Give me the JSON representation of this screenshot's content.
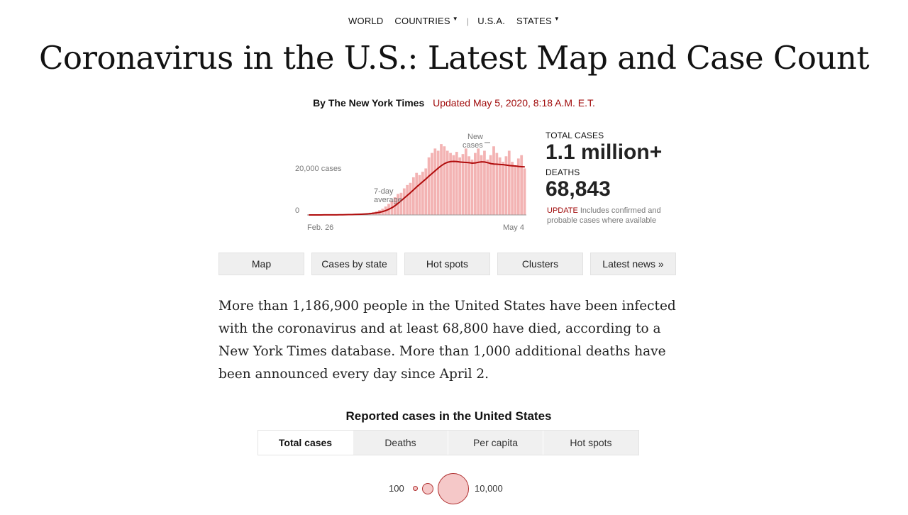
{
  "nav": {
    "items": [
      {
        "label": "WORLD",
        "caret": false
      },
      {
        "label": "COUNTRIES",
        "caret": true
      },
      {
        "label": "U.S.A.",
        "caret": false
      },
      {
        "label": "STATES",
        "caret": true
      }
    ],
    "separator": "|",
    "caret_glyph": "▼"
  },
  "header": {
    "title": "Coronavirus in the U.S.: Latest Map and Case Count",
    "byline": "By The New York Times",
    "updated": "Updated May 5, 2020, 8:18 A.M. E.T."
  },
  "chart_data": {
    "type": "bar",
    "series": [
      {
        "name": "New cases",
        "values": [
          10,
          15,
          20,
          25,
          30,
          40,
          50,
          60,
          80,
          100,
          130,
          160,
          200,
          250,
          300,
          380,
          450,
          550,
          650,
          800,
          1000,
          1300,
          1600,
          2200,
          2800,
          3800,
          5000,
          6500,
          8000,
          9500,
          10000,
          12000,
          13500,
          14500,
          17000,
          19000,
          18000,
          19500,
          21000,
          26000,
          28000,
          30000,
          29000,
          32000,
          31000,
          29000,
          28000,
          27000,
          28500,
          26000,
          27500,
          30000,
          26500,
          25000,
          28000,
          30000,
          27000,
          29000,
          25000,
          27000,
          31000,
          28000,
          26000,
          24000,
          26500,
          29000,
          24000,
          22000,
          25500,
          27000,
          21000
        ]
      },
      {
        "name": "7-day average",
        "values": [
          10,
          12,
          14,
          17,
          20,
          25,
          30,
          36,
          44,
          55,
          70,
          88,
          110,
          140,
          175,
          220,
          270,
          330,
          400,
          490,
          600,
          760,
          950,
          1200,
          1550,
          2000,
          2600,
          3300,
          4200,
          5300,
          6500,
          7700,
          8900,
          10100,
          11400,
          12700,
          13900,
          15100,
          16300,
          17600,
          18800,
          20000,
          21200,
          22300,
          23200,
          23800,
          24100,
          24200,
          24100,
          23900,
          23800,
          23700,
          23600,
          23400,
          23500,
          23800,
          24000,
          23900,
          23600,
          23200,
          23000,
          22900,
          22800,
          22700,
          22500,
          22300,
          22200,
          22100,
          21900,
          21800,
          21700
        ]
      }
    ],
    "x_start_label": "Feb. 26",
    "x_end_label": "May 4",
    "y_ticks": [
      0,
      20000
    ],
    "y_tick_labels": [
      "0",
      "20,000 cases"
    ],
    "annotations": {
      "new_cases": [
        "New",
        "cases"
      ],
      "avg": [
        "7-day",
        "average"
      ]
    },
    "ylim": [
      0,
      33000
    ],
    "colors": {
      "bar": "#f3b3b3",
      "line": "#b00c0c"
    }
  },
  "stats": {
    "total_label": "TOTAL CASES",
    "total_value": "1.1 million+",
    "deaths_label": "DEATHS",
    "deaths_value": "68,843",
    "note_update": "UPDATE",
    "note_text": "Includes confirmed and probable cases where available"
  },
  "buttons": [
    "Map",
    "Cases by state",
    "Hot spots",
    "Clusters",
    "Latest news »"
  ],
  "lede": "More than 1,186,900 people in the United States have been infected with the coronavirus and at least 68,800 have died, according to a New York Times database. More than 1,000 additional deaths have been announced every day since April 2.",
  "map_section": {
    "title": "Reported cases in the United States",
    "tabs": [
      {
        "label": "Total cases",
        "active": true
      },
      {
        "label": "Deaths",
        "active": false
      },
      {
        "label": "Per capita",
        "active": false
      },
      {
        "label": "Hot spots",
        "active": false
      }
    ],
    "legend": {
      "min_label": "100",
      "max_label": "10,000"
    }
  }
}
